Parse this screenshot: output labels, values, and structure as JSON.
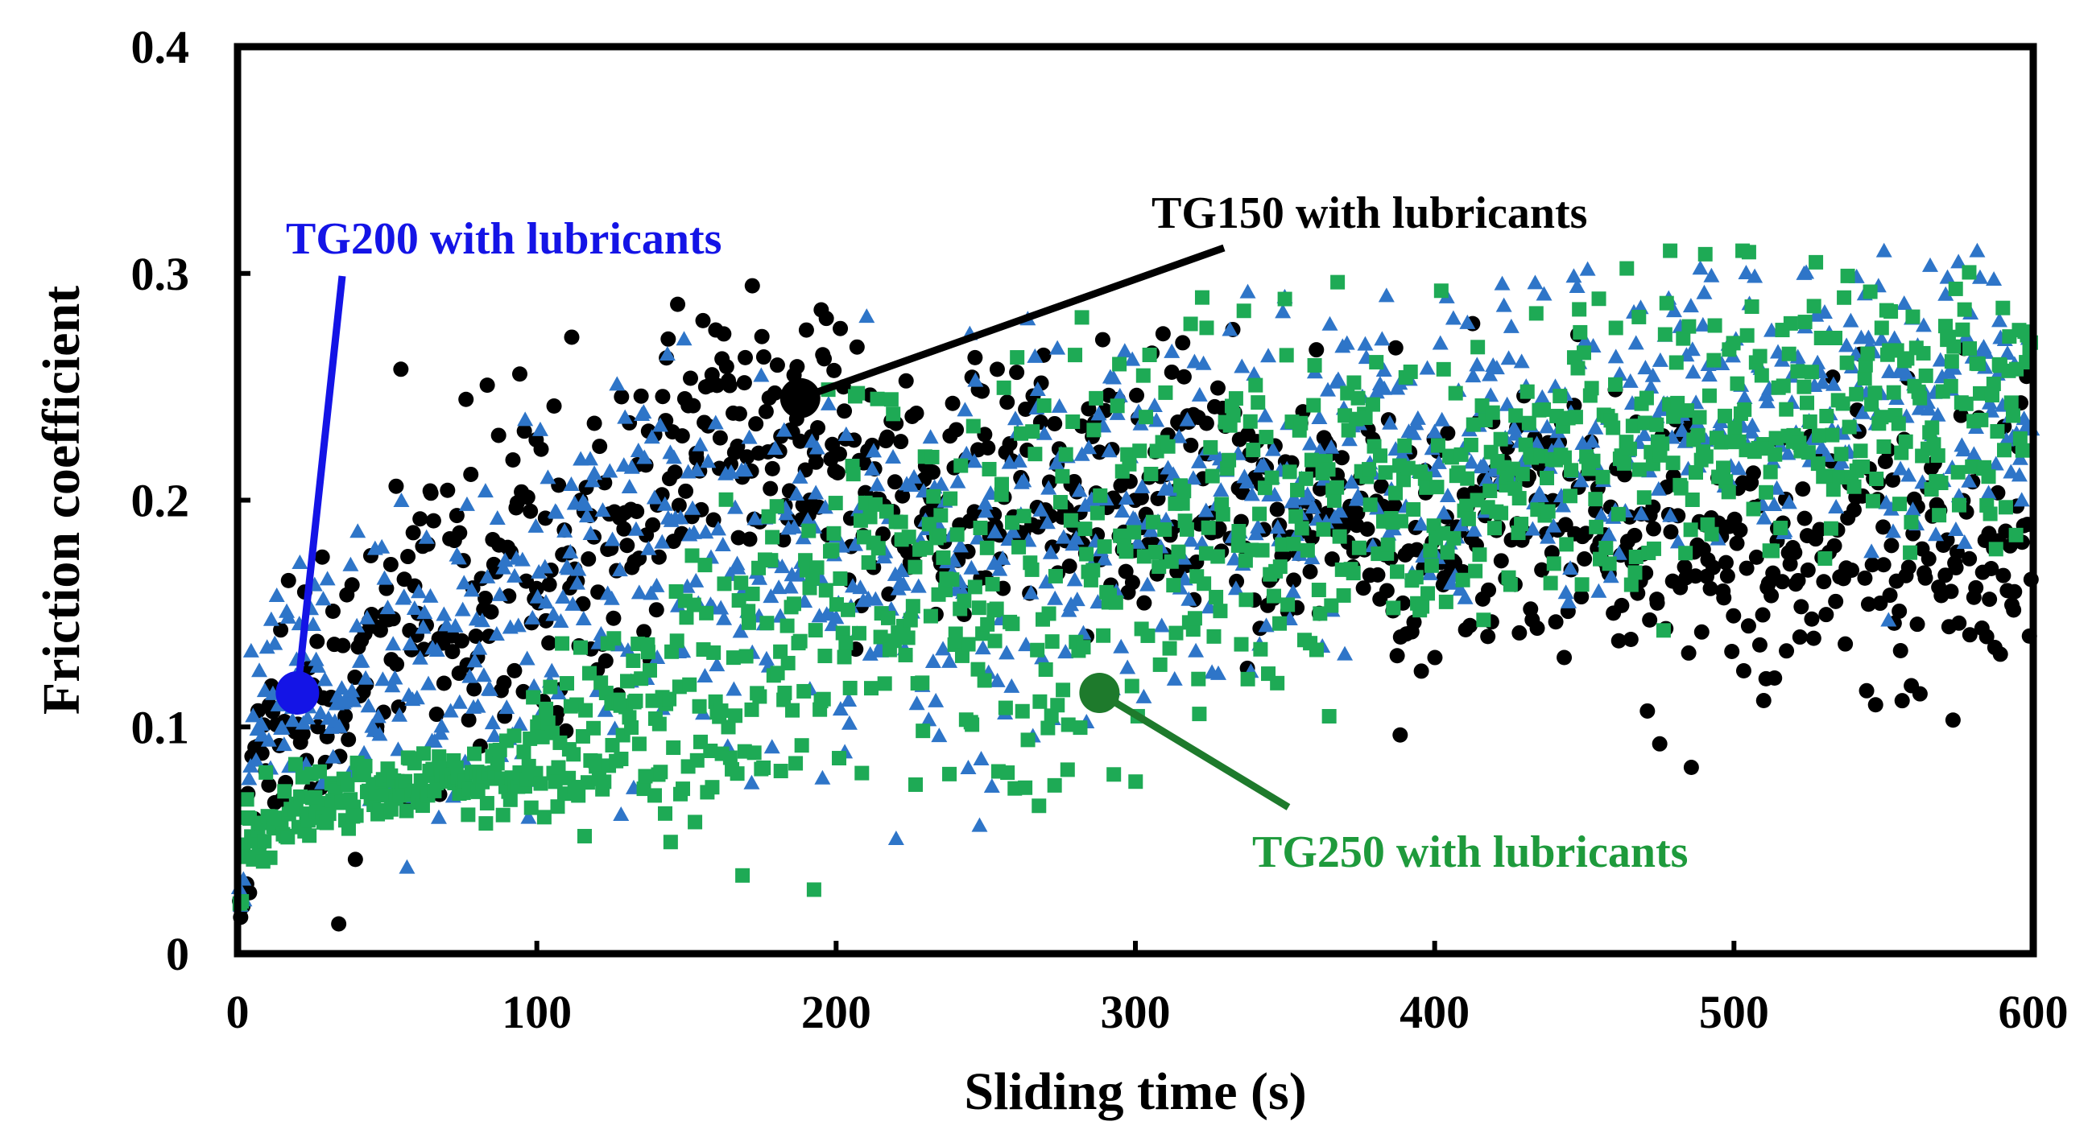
{
  "chart_data": {
    "type": "scatter",
    "title": "",
    "xlabel": "Sliding time (s)",
    "ylabel": "Friction coefficient",
    "xlim": [
      0,
      600
    ],
    "ylim": [
      0,
      0.4
    ],
    "x_ticks": [
      0,
      100,
      200,
      300,
      400,
      500,
      600
    ],
    "x_tick_labels": [
      "0",
      "100",
      "200",
      "300",
      "400",
      "500",
      "600"
    ],
    "y_ticks": [
      0,
      0.1,
      0.2,
      0.3,
      0.4
    ],
    "y_tick_labels": [
      "0",
      "0.1",
      "0.2",
      "0.3",
      "0.4"
    ],
    "grid": false,
    "legend": "none",
    "series": [
      {
        "name": "TG150 with lubricants",
        "marker": "circle",
        "color": "#000000",
        "profile_x": [
          0,
          5,
          10,
          20,
          40,
          60,
          80,
          100,
          120,
          150,
          160,
          175,
          190,
          210,
          240,
          280,
          320,
          360,
          400,
          440,
          480,
          520,
          560,
          600
        ],
        "profile_mean": [
          0.01,
          0.06,
          0.09,
          0.1,
          0.13,
          0.15,
          0.16,
          0.17,
          0.18,
          0.21,
          0.23,
          0.24,
          0.23,
          0.21,
          0.2,
          0.21,
          0.21,
          0.2,
          0.19,
          0.19,
          0.18,
          0.175,
          0.175,
          0.175
        ],
        "profile_spread": [
          0.005,
          0.03,
          0.03,
          0.04,
          0.045,
          0.045,
          0.045,
          0.045,
          0.04,
          0.035,
          0.03,
          0.03,
          0.03,
          0.035,
          0.035,
          0.035,
          0.035,
          0.035,
          0.035,
          0.035,
          0.035,
          0.035,
          0.04,
          0.04
        ]
      },
      {
        "name": "TG200 with lubricants",
        "marker": "triangle",
        "color": "#2e75c8",
        "profile_x": [
          0,
          5,
          10,
          30,
          60,
          100,
          110,
          150,
          200,
          250,
          300,
          350,
          400,
          450,
          500,
          550,
          600
        ],
        "profile_mean": [
          0.01,
          0.1,
          0.11,
          0.12,
          0.13,
          0.15,
          0.17,
          0.17,
          0.17,
          0.17,
          0.19,
          0.21,
          0.22,
          0.23,
          0.24,
          0.245,
          0.245
        ],
        "profile_spread": [
          0.005,
          0.025,
          0.03,
          0.035,
          0.04,
          0.04,
          0.045,
          0.05,
          0.05,
          0.05,
          0.05,
          0.045,
          0.04,
          0.035,
          0.035,
          0.035,
          0.035
        ],
        "annotation_point": [
          20,
          0.115
        ]
      },
      {
        "name": "TG250 with lubricants",
        "marker": "square",
        "color": "#1eaa55",
        "profile_x": [
          0,
          3,
          10,
          20,
          40,
          60,
          80,
          95,
          105,
          120,
          150,
          180,
          200,
          230,
          260,
          290,
          300,
          330,
          350,
          400,
          450,
          500,
          550,
          600
        ],
        "profile_mean": [
          0.01,
          0.05,
          0.06,
          0.065,
          0.07,
          0.075,
          0.075,
          0.08,
          0.1,
          0.1,
          0.11,
          0.13,
          0.16,
          0.16,
          0.16,
          0.16,
          0.19,
          0.2,
          0.2,
          0.21,
          0.22,
          0.24,
          0.245,
          0.245
        ],
        "profile_spread": [
          0.005,
          0.015,
          0.01,
          0.01,
          0.008,
          0.008,
          0.008,
          0.01,
          0.02,
          0.025,
          0.04,
          0.045,
          0.045,
          0.05,
          0.055,
          0.055,
          0.05,
          0.045,
          0.04,
          0.035,
          0.035,
          0.035,
          0.035,
          0.035
        ],
        "annotation_point": [
          288,
          0.115
        ]
      }
    ],
    "annotations": [
      {
        "text": "TG200 with lubricants",
        "color": "#1414e6",
        "points_to_series": "TG200 with lubricants"
      },
      {
        "text": "TG150 with lubricants",
        "color": "#000000",
        "points_to_series": "TG150 with lubricants"
      },
      {
        "text": "TG250 with lubricants",
        "color": "#1e9a3c",
        "points_to_series": "TG250 with lubricants"
      }
    ]
  }
}
